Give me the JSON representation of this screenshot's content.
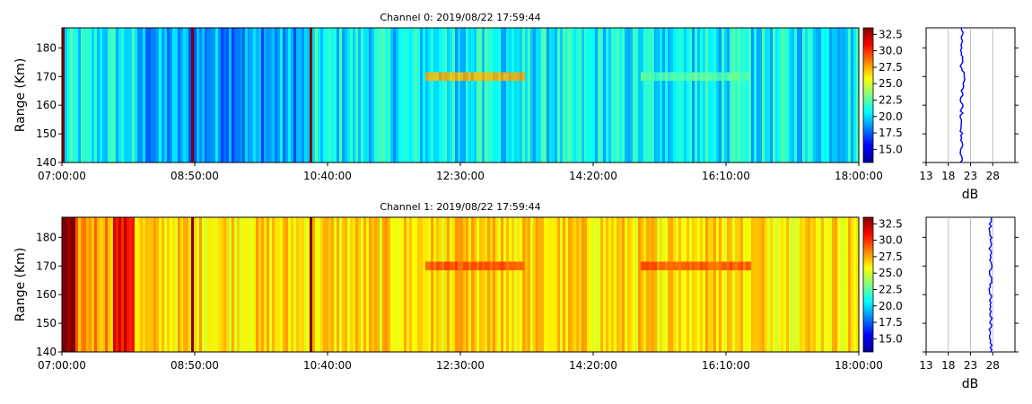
{
  "chart_data": [
    {
      "type": "heatmap",
      "title": "Channel 0: 2019/08/22 17:59:44",
      "ylabel": "Range (Km)",
      "x_ticks": [
        "07:00:00",
        "08:50:00",
        "10:40:00",
        "12:30:00",
        "14:20:00",
        "16:10:00",
        "18:00:00"
      ],
      "x_range": [
        "07:00:00",
        "18:00:00"
      ],
      "y_ticks": [
        140,
        150,
        160,
        170,
        180
      ],
      "y_range": [
        140,
        187
      ],
      "colorbar_ticks": [
        15.0,
        17.5,
        20.0,
        22.5,
        25.0,
        27.5,
        30.0,
        32.5
      ],
      "colorbar_ticks_text": [
        "15.0",
        "17.5",
        "20.0",
        "22.5",
        "25.0",
        "27.5",
        "30.0",
        "32.5"
      ],
      "colorbar_range": [
        13,
        33.5
      ],
      "colormap": "jet",
      "profile": {
        "xlabel": "dB",
        "x_ticks": [
          13,
          18,
          23,
          28
        ],
        "x_range": [
          13,
          33
        ],
        "grid": true,
        "line_color": "#0000ff",
        "approx_mean_db": 21
      }
    },
    {
      "type": "heatmap",
      "title": "Channel 1: 2019/08/22 17:59:44",
      "ylabel": "Range (Km)",
      "x_ticks": [
        "07:00:00",
        "08:50:00",
        "10:40:00",
        "12:30:00",
        "14:20:00",
        "16:10:00",
        "18:00:00"
      ],
      "x_range": [
        "07:00:00",
        "18:00:00"
      ],
      "y_ticks": [
        140,
        150,
        160,
        170,
        180
      ],
      "y_range": [
        140,
        187
      ],
      "colorbar_ticks": [
        15.0,
        17.5,
        20.0,
        22.5,
        25.0,
        27.5,
        30.0,
        32.5
      ],
      "colorbar_ticks_text": [
        "15.0",
        "17.5",
        "20.0",
        "22.5",
        "25.0",
        "27.5",
        "30.0",
        "32.5"
      ],
      "colorbar_range": [
        13,
        33.5
      ],
      "colormap": "jet",
      "profile": {
        "xlabel": "dB",
        "x_ticks": [
          13,
          18,
          23,
          28
        ],
        "x_range": [
          13,
          33
        ],
        "grid": true,
        "line_color": "#0000ff",
        "approx_mean_db": 27.5
      }
    }
  ]
}
